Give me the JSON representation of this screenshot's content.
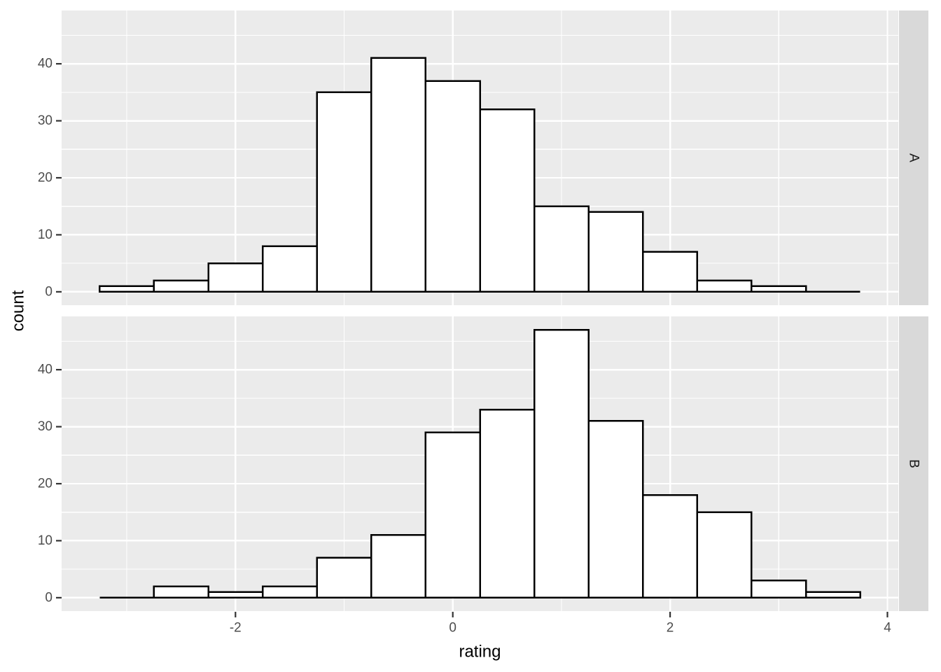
{
  "figure": {
    "background_color": "#FFFFFF",
    "panel_background_color": "#EBEBEB",
    "grid_color": "#FFFFFF",
    "strip_background_color": "#D9D9D9",
    "strip_text_color": "#1A1A1A",
    "axis_text_color": "#4D4D4D",
    "axis_title_color": "#000000",
    "tick_mark_color": "#333333",
    "bar_fill_color": "#FFFFFF",
    "bar_stroke_color": "#000000"
  },
  "chart_data": {
    "type": "bar",
    "subtype": "faceted-histogram",
    "title": "",
    "xlabel": "rating",
    "ylabel": "count",
    "legend": "none",
    "grid": true,
    "facet_layout": "rows, strips on right",
    "bin_start": -3.25,
    "bin_width": 0.5,
    "bin_edges": [
      -3.25,
      -2.75,
      -2.25,
      -1.75,
      -1.25,
      -0.75,
      -0.25,
      0.25,
      0.75,
      1.25,
      1.75,
      2.25,
      2.75,
      3.25,
      3.75
    ],
    "x_ticks": [
      -2,
      0,
      2,
      4
    ],
    "y_ticks": [
      0,
      10,
      20,
      30,
      40
    ],
    "x_minor_ticks": [
      -3,
      -1,
      1,
      3
    ],
    "y_minor_ticks": [
      5,
      15,
      25,
      35,
      45
    ],
    "xlim": [
      -3.6,
      4.1
    ],
    "ylim": [
      -2.35,
      49.35
    ],
    "facets": [
      {
        "label": "A",
        "counts": [
          1,
          2,
          5,
          8,
          35,
          41,
          37,
          32,
          15,
          14,
          7,
          2,
          1,
          0
        ],
        "total": 200
      },
      {
        "label": "B",
        "counts": [
          0,
          2,
          1,
          2,
          7,
          11,
          29,
          33,
          47,
          31,
          18,
          15,
          3,
          1
        ],
        "total": 200
      }
    ]
  }
}
